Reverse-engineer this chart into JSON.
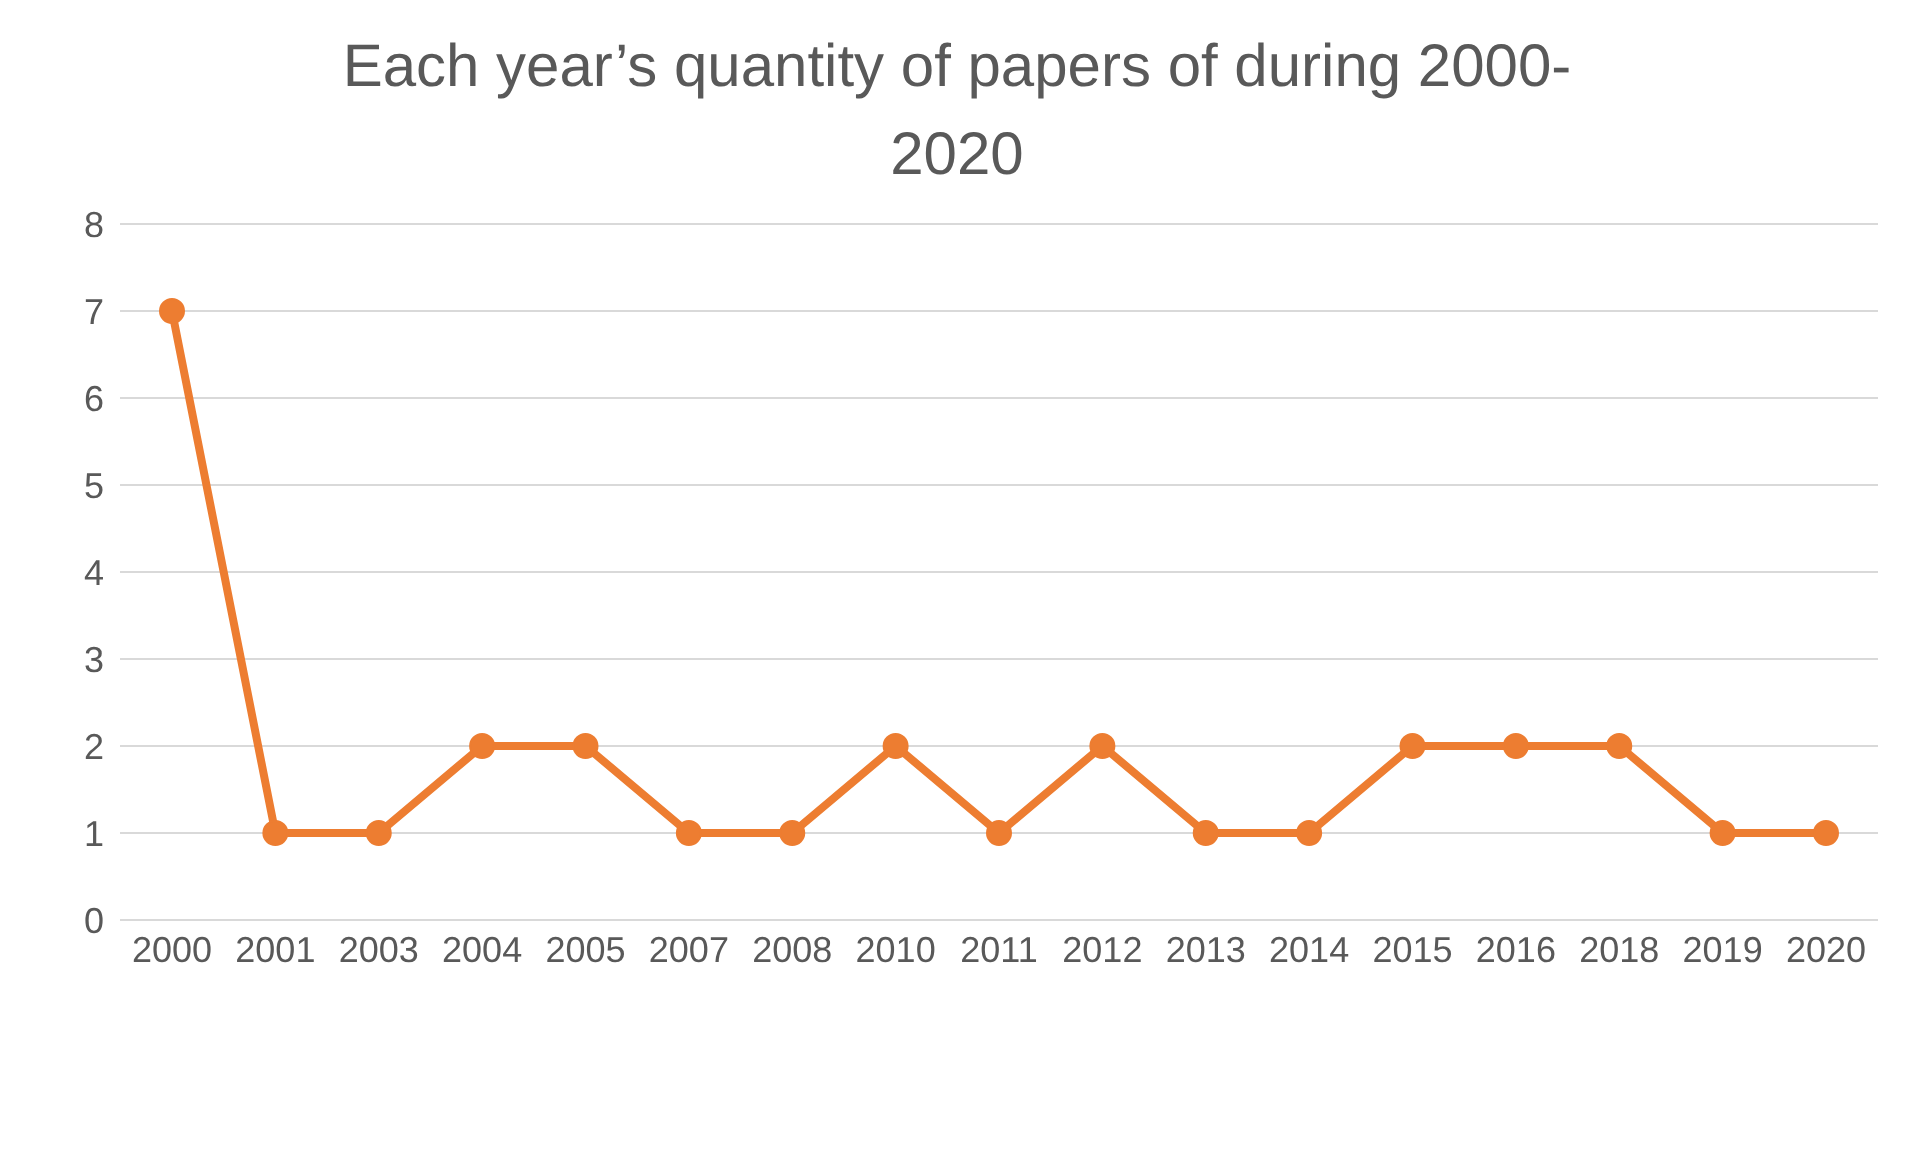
{
  "chart_data": {
    "type": "line",
    "title": "Each year’s quantity of papers of during 2000-2020",
    "categories": [
      "2000",
      "2001",
      "2003",
      "2004",
      "2005",
      "2007",
      "2008",
      "2010",
      "2011",
      "2012",
      "2013",
      "2014",
      "2015",
      "2016",
      "2018",
      "2019",
      "2020"
    ],
    "series": [
      {
        "color": "#ed7d31",
        "values": [
          7,
          1,
          1,
          2,
          2,
          1,
          1,
          2,
          1,
          2,
          1,
          1,
          2,
          2,
          2,
          1,
          1
        ]
      }
    ],
    "ylim": [
      0,
      8
    ],
    "yticks": [
      0,
      1,
      2,
      3,
      4,
      5,
      6,
      7,
      8
    ],
    "grid": "y",
    "marker": "circle",
    "line_style": "solid"
  }
}
